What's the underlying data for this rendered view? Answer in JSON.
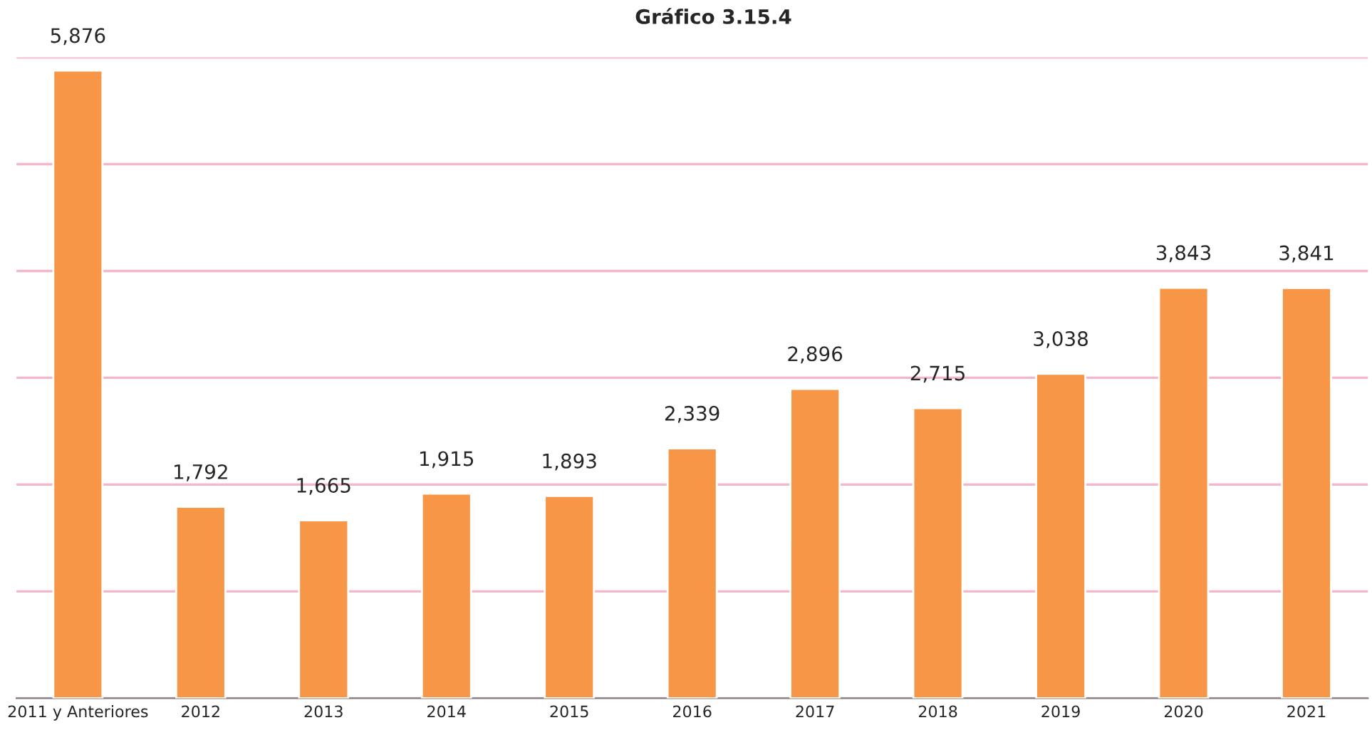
{
  "chart_data": {
    "type": "bar",
    "title": "Gráfico 3.15.4",
    "categories": [
      "2011 y Anteriores",
      "2012",
      "2013",
      "2014",
      "2015",
      "2016",
      "2017",
      "2018",
      "2019",
      "2020",
      "2021"
    ],
    "values": [
      5876,
      1792,
      1665,
      1915,
      1893,
      2339,
      2896,
      2715,
      3038,
      3843,
      3841
    ],
    "value_labels": [
      "5,876",
      "1,792",
      "1,665",
      "1,915",
      "1,893",
      "2,339",
      "2,896",
      "2,715",
      "3,038",
      "3,843",
      "3,841"
    ],
    "color": "#f79646",
    "ylim": [
      0,
      6000
    ],
    "yticks": [
      {
        "value": 0,
        "label": null
      },
      {
        "value": 1000,
        "label": null
      },
      {
        "value": 2000,
        "label": null
      },
      {
        "value": 3000,
        "label": null
      },
      {
        "value": 4000,
        "label": null
      },
      {
        "value": 5000,
        "label": null
      },
      {
        "value": 6000,
        "label": null
      }
    ],
    "tick_labels": "x",
    "grid": "y"
  }
}
